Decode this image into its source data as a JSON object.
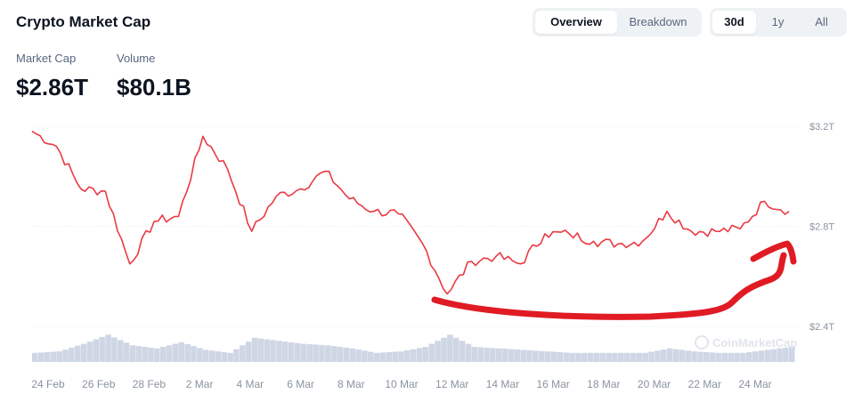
{
  "header": {
    "title": "Crypto Market Cap",
    "view_tabs": [
      {
        "label": "Overview",
        "active": true
      },
      {
        "label": "Breakdown",
        "active": false
      }
    ],
    "range_tabs": [
      {
        "label": "30d",
        "active": true
      },
      {
        "label": "1y",
        "active": false
      },
      {
        "label": "All",
        "active": false
      }
    ]
  },
  "stats": {
    "market_cap": {
      "label": "Market Cap",
      "value": "$2.86T"
    },
    "volume": {
      "label": "Volume",
      "value": "$80.1B"
    }
  },
  "watermark": "CoinMarketCap",
  "colors": {
    "line": "#ea3943",
    "volume": "#cfd6e4",
    "annotation": "#e01b24"
  },
  "chart_data": {
    "type": "line",
    "x_tick_labels": [
      "24 Feb",
      "26 Feb",
      "28 Feb",
      "2 Mar",
      "4 Mar",
      "6 Mar",
      "8 Mar",
      "10 Mar",
      "12 Mar",
      "14 Mar",
      "16 Mar",
      "18 Mar",
      "20 Mar",
      "22 Mar",
      "24 Mar"
    ],
    "y_tick_labels": [
      "$3.2T",
      "$2.8T",
      "$2.4T"
    ],
    "ylim": [
      2.4,
      3.2
    ],
    "grid": "horizontal dotted",
    "series": [
      {
        "x": [
          "24 Feb",
          "25 Feb",
          "26 Feb",
          "27 Feb",
          "28 Feb",
          "1 Mar",
          "2 Mar",
          "2 Mar 12h",
          "3 Mar",
          "4 Mar",
          "4 Mar 12h",
          "5 Mar",
          "6 Mar",
          "7 Mar",
          "8 Mar",
          "9 Mar",
          "10 Mar",
          "11 Mar",
          "12 Mar",
          "13 Mar",
          "14 Mar",
          "15 Mar",
          "16 Mar",
          "17 Mar",
          "18 Mar",
          "19 Mar",
          "20 Mar",
          "21 Mar",
          "22 Mar",
          "23 Mar",
          "24 Mar",
          "25 Mar"
        ],
        "values": [
          3.18,
          3.12,
          2.95,
          2.94,
          2.65,
          2.82,
          2.84,
          3.16,
          3.03,
          2.78,
          2.92,
          2.95,
          3.02,
          2.91,
          2.86,
          2.85,
          2.73,
          2.53,
          2.66,
          2.68,
          2.65,
          2.77,
          2.77,
          2.74,
          2.73,
          2.74,
          2.86,
          2.78,
          2.78,
          2.79,
          2.9,
          2.86
        ]
      }
    ],
    "volume_bars": {
      "note": "relative volume histogram under the price line",
      "values": [
        0.3,
        0.35,
        0.6,
        0.9,
        0.55,
        0.45,
        0.65,
        0.4,
        0.3,
        0.8,
        0.7,
        0.6,
        0.55,
        0.45,
        0.3,
        0.35,
        0.5,
        0.9,
        0.5,
        0.45,
        0.4,
        0.35,
        0.3,
        0.3,
        0.3,
        0.3,
        0.45,
        0.35,
        0.3,
        0.3,
        0.4,
        0.5
      ]
    }
  }
}
